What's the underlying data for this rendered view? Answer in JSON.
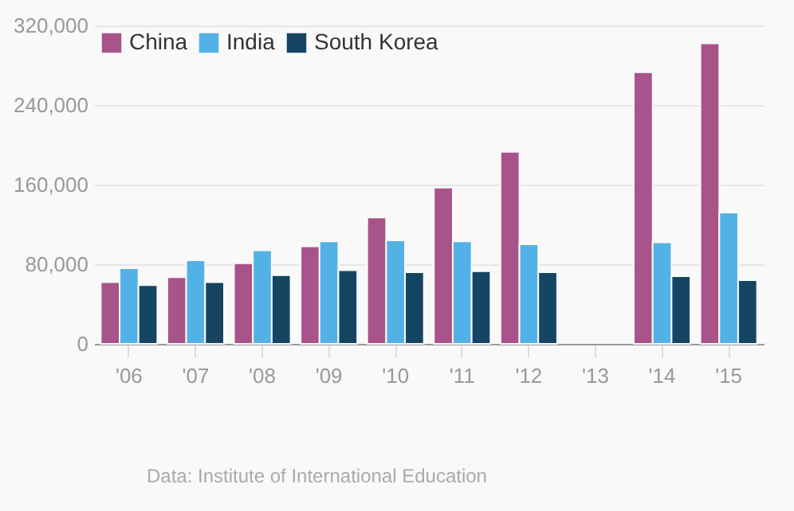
{
  "chart_data": {
    "type": "bar",
    "categories": [
      "'06",
      "'07",
      "'08",
      "'09",
      "'10",
      "'11",
      "'12",
      "'13",
      "'14",
      "'15"
    ],
    "series": [
      {
        "name": "China",
        "color": "#a8538a",
        "values": [
          62000,
          67000,
          81000,
          98000,
          127000,
          157000,
          193000,
          null,
          273000,
          302000
        ]
      },
      {
        "name": "India",
        "color": "#52b2e5",
        "values": [
          76000,
          84000,
          94000,
          103000,
          104000,
          103000,
          100000,
          null,
          102000,
          132000
        ]
      },
      {
        "name": "South Korea",
        "color": "#154563",
        "values": [
          59000,
          62000,
          69000,
          74000,
          72000,
          73000,
          72000,
          null,
          68000,
          64000
        ]
      }
    ],
    "ylim": [
      0,
      320000
    ],
    "yticks": [
      0,
      {
        "value": 80000,
        "label": "80,000"
      },
      {
        "value": 160000,
        "label": "160,000"
      },
      {
        "value": 240000,
        "label": "240,000"
      },
      {
        "value": 320000,
        "label": "320,000"
      }
    ],
    "grid": "y",
    "legend": "top left",
    "annotations": [
      "Data: Institute of International Education"
    ]
  }
}
